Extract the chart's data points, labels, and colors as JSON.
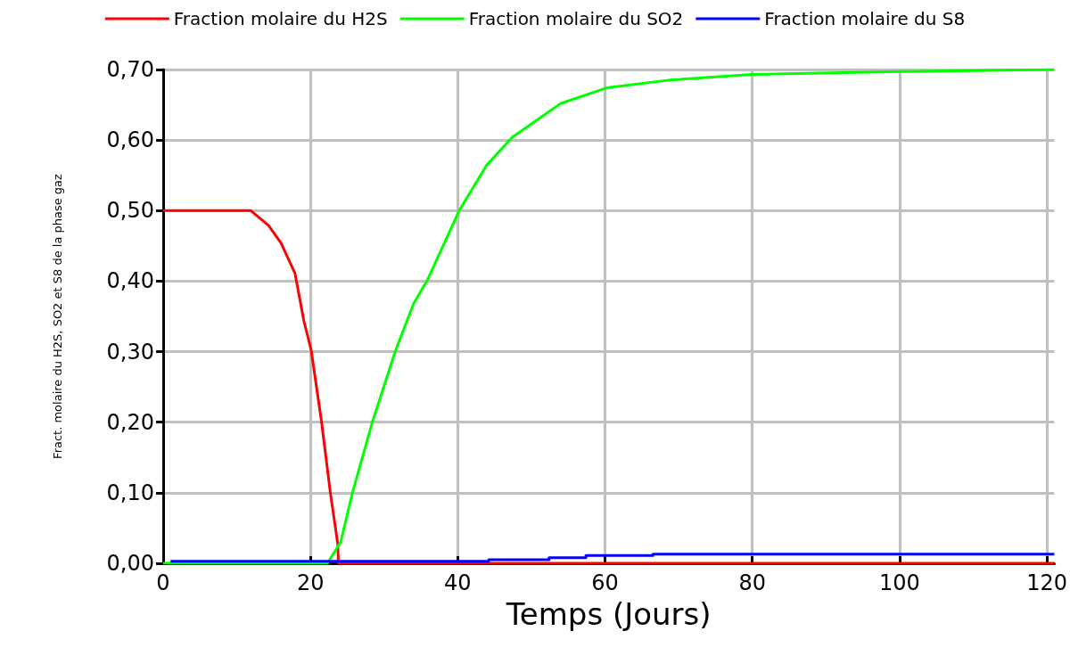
{
  "chart_data": {
    "type": "line",
    "xlabel": "Temps (Jours)",
    "ylabel": "Fract. molaire du H2S, SO2 et S8 de la phase gaz",
    "xlim": [
      0,
      121
    ],
    "ylim": [
      0,
      0.7
    ],
    "xticks": [
      0,
      20,
      40,
      60,
      80,
      100,
      120
    ],
    "yticks": [
      {
        "value": 0,
        "label": "0,00"
      },
      {
        "value": 0.1,
        "label": "0,10"
      },
      {
        "value": 0.2,
        "label": "0,20"
      },
      {
        "value": 0.3,
        "label": "0,30"
      },
      {
        "value": 0.4,
        "label": "0,40"
      },
      {
        "value": 0.5,
        "label": "0,50"
      },
      {
        "value": 0.6,
        "label": "0,60"
      },
      {
        "value": 0.7,
        "label": "0,70"
      }
    ],
    "grid": true,
    "legend": "top",
    "marker": "none",
    "line_style": "solid",
    "series": [
      {
        "name": "Fraction molaire du H2S",
        "color": "#ff0000",
        "x": [
          0,
          11,
          11.9,
          14.3,
          16,
          17.9,
          19.1,
          20.1,
          21.5,
          22.7,
          23.7,
          23.8,
          121
        ],
        "values": [
          0.5,
          0.5,
          0.5,
          0.479,
          0.454,
          0.411,
          0.344,
          0.302,
          0.201,
          0.1,
          0.028,
          0,
          0
        ]
      },
      {
        "name": "Fraction molaire du SO2",
        "color": "#00ff00",
        "x": [
          0,
          22.3,
          24.1,
          25.7,
          28.4,
          31.5,
          34,
          35.9,
          40.2,
          43.9,
          47.4,
          54,
          60.2,
          68.7,
          80,
          100,
          121
        ],
        "values": [
          0,
          0,
          0.03,
          0.1,
          0.2,
          0.3,
          0.368,
          0.402,
          0.5,
          0.564,
          0.604,
          0.652,
          0.674,
          0.685,
          0.693,
          0.697,
          0.7
        ]
      },
      {
        "name": "Fraction molaire du S8",
        "color": "#0000ff",
        "x": [
          1,
          44.2,
          44.2,
          52.4,
          52.4,
          57.4,
          57.4,
          66.5,
          66.5,
          121
        ],
        "values": [
          0.003,
          0.003,
          0.005,
          0.005,
          0.008,
          0.008,
          0.011,
          0.011,
          0.013,
          0.013
        ]
      }
    ]
  }
}
